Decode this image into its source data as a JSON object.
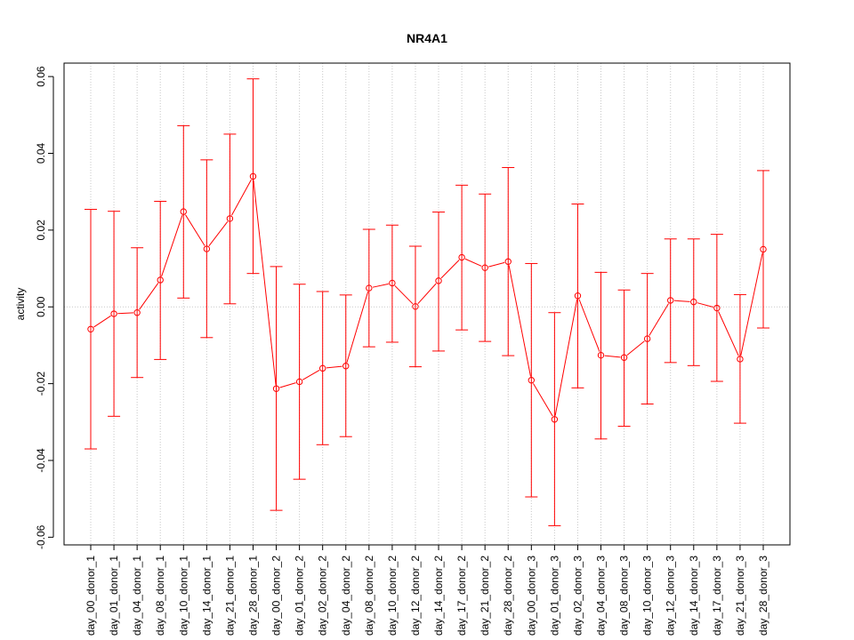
{
  "chart_data": {
    "type": "line",
    "title": "NR4A1",
    "xlabel": "",
    "ylabel": "activity",
    "ylim": [
      -0.062,
      0.0635
    ],
    "yticks": [
      "-0.06",
      "-0.04",
      "-0.02",
      "0.00",
      "0.02",
      "0.04",
      "0.06"
    ],
    "ytick_values": [
      -0.06,
      -0.04,
      -0.02,
      0.0,
      0.02,
      0.04,
      0.06
    ],
    "grid": true,
    "color": "#ff0000",
    "categories": [
      "day_00_donor_1",
      "day_01_donor_1",
      "day_04_donor_1",
      "day_08_donor_1",
      "day_10_donor_1",
      "day_14_donor_1",
      "day_21_donor_1",
      "day_28_donor_1",
      "day_00_donor_2",
      "day_01_donor_2",
      "day_02_donor_2",
      "day_04_donor_2",
      "day_08_donor_2",
      "day_10_donor_2",
      "day_12_donor_2",
      "day_14_donor_2",
      "day_17_donor_2",
      "day_21_donor_2",
      "day_28_donor_2",
      "day_00_donor_3",
      "day_01_donor_3",
      "day_02_donor_3",
      "day_04_donor_3",
      "day_08_donor_3",
      "day_10_donor_3",
      "day_12_donor_3",
      "day_14_donor_3",
      "day_17_donor_3",
      "day_21_donor_3",
      "day_28_donor_3"
    ],
    "series": [
      {
        "values": [
          -0.0058,
          -0.0018,
          -0.0015,
          0.007,
          0.0248,
          0.0151,
          0.023,
          0.034,
          -0.0213,
          -0.0195,
          -0.016,
          -0.0154,
          0.0049,
          0.0062,
          0.0001,
          0.0068,
          0.0129,
          0.0102,
          0.0118,
          -0.0191,
          -0.0293,
          0.0029,
          -0.0126,
          -0.0132,
          -0.0083,
          0.0017,
          0.0013,
          -0.0003,
          -0.0136,
          0.015
        ],
        "upper": [
          0.0254,
          0.0249,
          0.0154,
          0.0275,
          0.0472,
          0.0383,
          0.045,
          0.0594,
          0.0105,
          0.0059,
          0.004,
          0.0031,
          0.0202,
          0.0213,
          0.0158,
          0.0247,
          0.0317,
          0.0294,
          0.0363,
          0.0113,
          -0.0015,
          0.0268,
          0.009,
          0.0044,
          0.0087,
          0.0177,
          0.0177,
          0.0189,
          0.0032,
          0.0355
        ],
        "lower": [
          -0.037,
          -0.0285,
          -0.0184,
          -0.0137,
          0.0023,
          -0.008,
          0.0008,
          0.0087,
          -0.053,
          -0.0449,
          -0.0359,
          -0.0338,
          -0.0104,
          -0.0092,
          -0.0156,
          -0.0115,
          -0.006,
          -0.009,
          -0.0127,
          -0.0495,
          -0.057,
          -0.0211,
          -0.0344,
          -0.0311,
          -0.0253,
          -0.0145,
          -0.0153,
          -0.0194,
          -0.0303,
          -0.0055
        ]
      }
    ]
  }
}
